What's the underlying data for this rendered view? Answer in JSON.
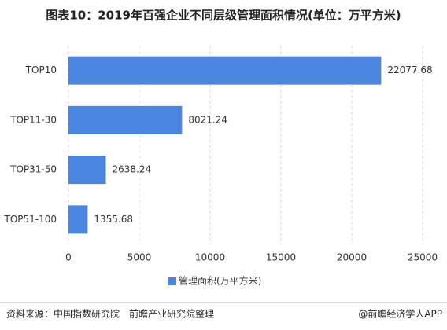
{
  "chart_data": {
    "type": "bar",
    "orientation": "horizontal",
    "title": "图表10：2019年百强企业不同层级管理面积情况(单位：万平方米)",
    "categories": [
      "TOP10",
      "TOP11-30",
      "TOP31-50",
      "TOP51-100"
    ],
    "series": [
      {
        "name": "管理面积(万平方米)",
        "color": "#4a86e0",
        "values": [
          22077.68,
          8021.24,
          2638.24,
          1355.68
        ]
      }
    ],
    "xlim": [
      0,
      25000
    ],
    "xticks": [
      0,
      5000,
      10000,
      15000,
      20000,
      25000
    ],
    "grid": true,
    "legend": "bottom"
  },
  "source": "资料来源：中国指数研究院　前瞻产业研究院整理",
  "brand": "@前瞻经济学人APP"
}
